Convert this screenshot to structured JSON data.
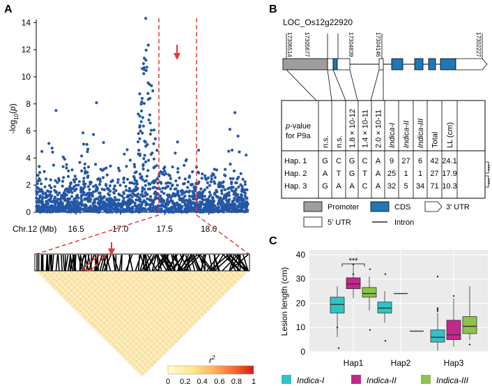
{
  "panels": {
    "a": "A",
    "b": "B",
    "c": "C"
  },
  "panel_a": {
    "ylabel": "-log10(p)",
    "xlabel": "Chr.12 (Mb)",
    "x_ticks": [
      "16.5",
      "17.0",
      "17.5",
      "18.0"
    ],
    "y_ticks": [
      "0",
      "2",
      "4",
      "6",
      "8",
      "10",
      "12",
      "14"
    ],
    "ld_legend_title": "r2",
    "ld_ticks": [
      "0",
      "0.2",
      "0.4",
      "0.6",
      "0.8",
      "1"
    ]
  },
  "panel_b": {
    "gene": "LOC_Os12g22920",
    "positions": [
      "17306514",
      "17305677",
      "17304839",
      "17304146",
      "17302227"
    ],
    "table": {
      "header_pvalue": "p-value for P9a",
      "col_headers": [
        "n.s.",
        "n.s.",
        "1.8 × 10-12",
        "1.4 × 10-11",
        "2.0 × 10-11",
        "Indica-I",
        "Indica-II",
        "Indica-III",
        "Total",
        "LL (cm)"
      ],
      "rows": [
        {
          "name": "Hap. 1",
          "cells": [
            "G",
            "C",
            "G",
            "C",
            "A",
            "9",
            "27",
            "6",
            "42",
            "24.1"
          ]
        },
        {
          "name": "Hap. 2",
          "cells": [
            "A",
            "T",
            "G",
            "T",
            "A",
            "25",
            "1",
            "1",
            "27",
            "17.9"
          ]
        },
        {
          "name": "Hap. 3",
          "cells": [
            "G",
            "A",
            "A",
            "C",
            "A",
            "32",
            "5",
            "34",
            "71",
            "10.3"
          ]
        }
      ],
      "sig": [
        "***",
        "***"
      ]
    },
    "legend": [
      "Promoter",
      "CDS",
      "3' UTR",
      "5' UTR",
      "Intron"
    ]
  },
  "chart_data": {
    "type": "box",
    "ylabel": "Lesion length (cm)",
    "categories": [
      "Hap1",
      "Hap2",
      "Hap3"
    ],
    "ylim": [
      0,
      40
    ],
    "y_ticks": [
      "0",
      "10",
      "20",
      "30",
      "40"
    ],
    "series": [
      {
        "name": "Indica-I",
        "color": "#2ec4c4"
      },
      {
        "name": "Indica-II",
        "color": "#c2278c"
      },
      {
        "name": "Indica-III",
        "color": "#8dc34a"
      }
    ],
    "annotation": "***",
    "grid": true
  }
}
